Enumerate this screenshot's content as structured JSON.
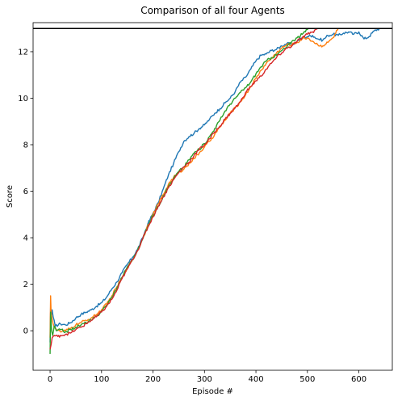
{
  "chart_data": {
    "type": "line",
    "title": "Comparison of all four Agents",
    "xlabel": "Episode #",
    "ylabel": "Score",
    "xlim": [
      -33,
      665
    ],
    "ylim": [
      -1.7,
      13.25
    ],
    "x_ticks": [
      0,
      100,
      200,
      300,
      400,
      500,
      600
    ],
    "y_ticks": [
      0,
      2,
      4,
      6,
      8,
      10,
      12
    ],
    "grid": false,
    "legend": "none",
    "reference_line": {
      "y": 13,
      "color": "#000000"
    },
    "series": [
      {
        "color": "#1f77b4",
        "points": [
          [
            0,
            -0.5
          ],
          [
            1,
            1.0
          ],
          [
            2,
            0.5
          ],
          [
            4,
            0.9
          ],
          [
            6,
            0.6
          ],
          [
            10,
            0.2
          ],
          [
            20,
            0.3
          ],
          [
            30,
            0.25
          ],
          [
            40,
            0.35
          ],
          [
            50,
            0.55
          ],
          [
            60,
            0.7
          ],
          [
            70,
            0.8
          ],
          [
            80,
            0.9
          ],
          [
            90,
            1.05
          ],
          [
            100,
            1.2
          ],
          [
            110,
            1.45
          ],
          [
            120,
            1.8
          ],
          [
            130,
            2.1
          ],
          [
            140,
            2.5
          ],
          [
            150,
            2.85
          ],
          [
            160,
            3.15
          ],
          [
            170,
            3.5
          ],
          [
            180,
            4.0
          ],
          [
            190,
            4.6
          ],
          [
            200,
            5.05
          ],
          [
            210,
            5.5
          ],
          [
            220,
            6.1
          ],
          [
            230,
            6.7
          ],
          [
            240,
            7.2
          ],
          [
            250,
            7.7
          ],
          [
            260,
            8.15
          ],
          [
            270,
            8.35
          ],
          [
            280,
            8.5
          ],
          [
            290,
            8.7
          ],
          [
            300,
            8.85
          ],
          [
            310,
            9.1
          ],
          [
            320,
            9.35
          ],
          [
            330,
            9.55
          ],
          [
            340,
            9.8
          ],
          [
            350,
            10.0
          ],
          [
            360,
            10.3
          ],
          [
            370,
            10.7
          ],
          [
            380,
            10.9
          ],
          [
            390,
            11.25
          ],
          [
            400,
            11.6
          ],
          [
            410,
            11.85
          ],
          [
            420,
            11.9
          ],
          [
            430,
            12.05
          ],
          [
            440,
            12.1
          ],
          [
            450,
            12.25
          ],
          [
            460,
            12.35
          ],
          [
            470,
            12.3
          ],
          [
            480,
            12.45
          ],
          [
            490,
            12.6
          ],
          [
            500,
            12.65
          ],
          [
            510,
            12.7
          ],
          [
            520,
            12.55
          ],
          [
            530,
            12.5
          ],
          [
            540,
            12.7
          ],
          [
            550,
            12.75
          ],
          [
            560,
            12.7
          ],
          [
            570,
            12.8
          ],
          [
            580,
            12.85
          ],
          [
            590,
            12.75
          ],
          [
            600,
            12.85
          ],
          [
            610,
            12.55
          ],
          [
            620,
            12.65
          ],
          [
            630,
            12.9
          ],
          [
            640,
            13.0
          ]
        ]
      },
      {
        "color": "#ff7f0e",
        "points": [
          [
            0,
            -0.3
          ],
          [
            1,
            1.5
          ],
          [
            2,
            0.8
          ],
          [
            4,
            0.5
          ],
          [
            6,
            0.3
          ],
          [
            10,
            0.1
          ],
          [
            20,
            -0.05
          ],
          [
            30,
            0.0
          ],
          [
            40,
            0.1
          ],
          [
            50,
            0.25
          ],
          [
            60,
            0.35
          ],
          [
            70,
            0.45
          ],
          [
            80,
            0.55
          ],
          [
            90,
            0.7
          ],
          [
            100,
            0.9
          ],
          [
            110,
            1.15
          ],
          [
            120,
            1.5
          ],
          [
            130,
            1.9
          ],
          [
            140,
            2.3
          ],
          [
            150,
            2.7
          ],
          [
            160,
            3.05
          ],
          [
            170,
            3.45
          ],
          [
            180,
            3.95
          ],
          [
            190,
            4.55
          ],
          [
            200,
            5.0
          ],
          [
            210,
            5.45
          ],
          [
            220,
            5.85
          ],
          [
            230,
            6.3
          ],
          [
            240,
            6.6
          ],
          [
            250,
            6.8
          ],
          [
            260,
            6.95
          ],
          [
            270,
            7.2
          ],
          [
            280,
            7.4
          ],
          [
            290,
            7.65
          ],
          [
            300,
            7.9
          ],
          [
            310,
            8.15
          ],
          [
            320,
            8.45
          ],
          [
            330,
            8.75
          ],
          [
            340,
            9.05
          ],
          [
            350,
            9.35
          ],
          [
            360,
            9.6
          ],
          [
            370,
            9.85
          ],
          [
            380,
            10.15
          ],
          [
            390,
            10.5
          ],
          [
            400,
            10.85
          ],
          [
            410,
            11.2
          ],
          [
            420,
            11.5
          ],
          [
            430,
            11.7
          ],
          [
            440,
            11.95
          ],
          [
            450,
            12.15
          ],
          [
            460,
            12.3
          ],
          [
            470,
            12.3
          ],
          [
            480,
            12.4
          ],
          [
            490,
            12.55
          ],
          [
            500,
            12.6
          ],
          [
            510,
            12.45
          ],
          [
            520,
            12.3
          ],
          [
            530,
            12.25
          ],
          [
            540,
            12.4
          ],
          [
            550,
            12.6
          ],
          [
            555,
            12.8
          ],
          [
            560,
            13.0
          ]
        ]
      },
      {
        "color": "#2ca02c",
        "points": [
          [
            0,
            -1.0
          ],
          [
            1,
            0.8
          ],
          [
            3,
            0.0
          ],
          [
            5,
            -0.2
          ],
          [
            8,
            0.2
          ],
          [
            12,
            0.0
          ],
          [
            20,
            0.05
          ],
          [
            30,
            -0.05
          ],
          [
            40,
            0.05
          ],
          [
            50,
            0.15
          ],
          [
            60,
            0.25
          ],
          [
            70,
            0.35
          ],
          [
            80,
            0.45
          ],
          [
            90,
            0.6
          ],
          [
            100,
            0.85
          ],
          [
            110,
            1.1
          ],
          [
            120,
            1.45
          ],
          [
            130,
            1.85
          ],
          [
            140,
            2.3
          ],
          [
            150,
            2.75
          ],
          [
            160,
            3.05
          ],
          [
            170,
            3.45
          ],
          [
            180,
            3.95
          ],
          [
            190,
            4.5
          ],
          [
            200,
            4.95
          ],
          [
            210,
            5.35
          ],
          [
            220,
            5.8
          ],
          [
            230,
            6.2
          ],
          [
            240,
            6.55
          ],
          [
            250,
            6.85
          ],
          [
            260,
            7.05
          ],
          [
            270,
            7.35
          ],
          [
            280,
            7.65
          ],
          [
            290,
            7.8
          ],
          [
            300,
            8.05
          ],
          [
            310,
            8.35
          ],
          [
            320,
            8.7
          ],
          [
            330,
            9.05
          ],
          [
            340,
            9.45
          ],
          [
            350,
            9.75
          ],
          [
            360,
            10.0
          ],
          [
            370,
            10.25
          ],
          [
            380,
            10.45
          ],
          [
            390,
            10.7
          ],
          [
            400,
            11.05
          ],
          [
            410,
            11.35
          ],
          [
            420,
            11.6
          ],
          [
            430,
            11.75
          ],
          [
            440,
            11.85
          ],
          [
            450,
            12.05
          ],
          [
            460,
            12.2
          ],
          [
            470,
            12.45
          ],
          [
            480,
            12.6
          ],
          [
            490,
            12.75
          ],
          [
            500,
            12.95
          ],
          [
            503,
            13.0
          ]
        ]
      },
      {
        "color": "#d62728",
        "points": [
          [
            0,
            -0.8
          ],
          [
            2,
            -0.6
          ],
          [
            4,
            -0.3
          ],
          [
            8,
            -0.2
          ],
          [
            15,
            -0.25
          ],
          [
            20,
            -0.2
          ],
          [
            30,
            -0.15
          ],
          [
            40,
            -0.1
          ],
          [
            50,
            0.05
          ],
          [
            60,
            0.15
          ],
          [
            70,
            0.3
          ],
          [
            80,
            0.45
          ],
          [
            90,
            0.6
          ],
          [
            100,
            0.8
          ],
          [
            110,
            1.05
          ],
          [
            120,
            1.35
          ],
          [
            130,
            1.75
          ],
          [
            140,
            2.25
          ],
          [
            150,
            2.65
          ],
          [
            160,
            3.05
          ],
          [
            170,
            3.45
          ],
          [
            180,
            3.95
          ],
          [
            190,
            4.45
          ],
          [
            200,
            4.9
          ],
          [
            210,
            5.35
          ],
          [
            220,
            5.75
          ],
          [
            230,
            6.15
          ],
          [
            240,
            6.5
          ],
          [
            250,
            6.8
          ],
          [
            260,
            7.05
          ],
          [
            270,
            7.25
          ],
          [
            280,
            7.55
          ],
          [
            290,
            7.8
          ],
          [
            300,
            8.0
          ],
          [
            310,
            8.25
          ],
          [
            320,
            8.55
          ],
          [
            330,
            8.8
          ],
          [
            340,
            9.1
          ],
          [
            350,
            9.35
          ],
          [
            360,
            9.6
          ],
          [
            370,
            9.85
          ],
          [
            380,
            10.25
          ],
          [
            390,
            10.5
          ],
          [
            400,
            10.75
          ],
          [
            410,
            10.95
          ],
          [
            420,
            11.25
          ],
          [
            430,
            11.5
          ],
          [
            440,
            11.75
          ],
          [
            450,
            11.95
          ],
          [
            460,
            12.15
          ],
          [
            470,
            12.25
          ],
          [
            480,
            12.45
          ],
          [
            490,
            12.6
          ],
          [
            500,
            12.75
          ],
          [
            510,
            12.85
          ],
          [
            520,
            13.0
          ]
        ]
      }
    ]
  }
}
